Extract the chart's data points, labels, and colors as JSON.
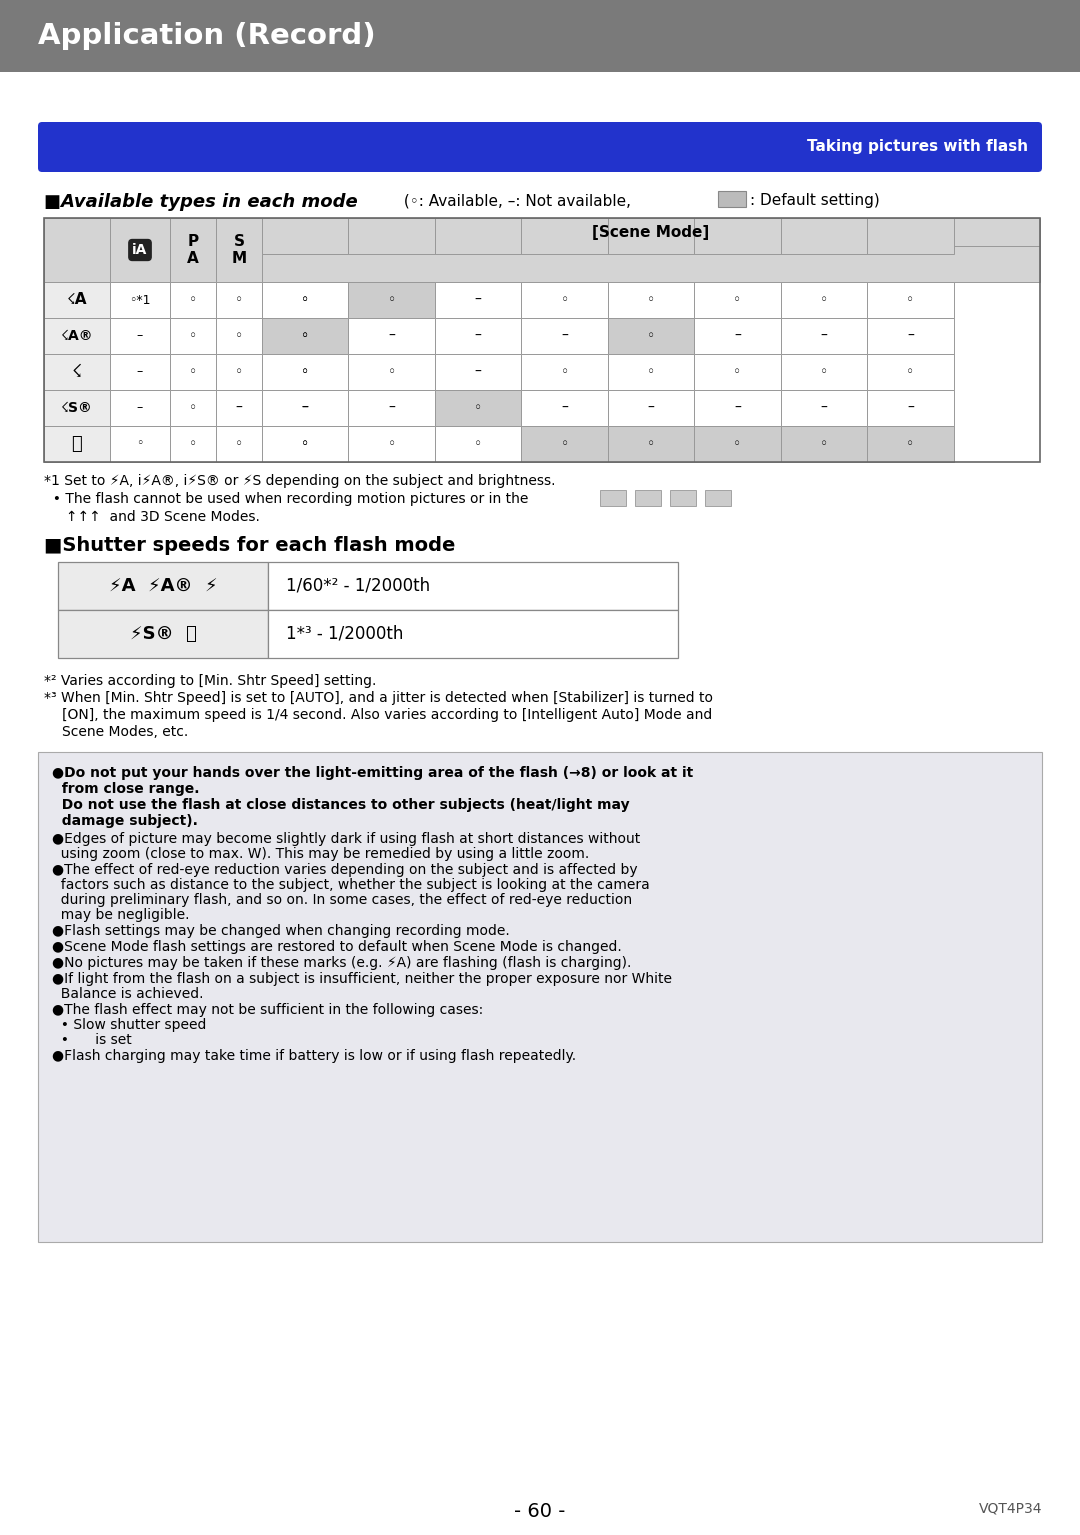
{
  "page_title": "Application (Record)",
  "page_title_bg": "#7a7a7a",
  "page_title_color": "#ffffff",
  "section_banner_text": "Taking pictures with flash",
  "section_banner_bg": "#2233cc",
  "section_banner_color": "#ffffff",
  "shutter_heading": "Shutter speeds for each flash mode",
  "shutter_row1_value": "1/60*² - 1/2000th",
  "shutter_row2_value": "1*³ - 1/2000th",
  "footnote2": "*² Varies according to [Min. Shtr Speed] setting.",
  "footnote3_line1": "*³ When [Min. Shtr Speed] is set to [AUTO], and a jitter is detected when [Stabilizer] is turned to",
  "footnote3_line2": "[ON], the maximum speed is 1/4 second. Also varies according to [Intelligent Auto] Mode and",
  "footnote3_line3": "Scene Modes, etc.",
  "page_number": "- 60 -",
  "model_number": "VQT4P34",
  "bg_color": "#ffffff",
  "text_color": "#000000",
  "table_header_bg": "#d4d4d4",
  "table_default_cell_bg": "#cccccc",
  "table_normal_cell_bg": "#ffffff",
  "border_color": "#999999",
  "warn_box_bg": "#e8e8ee",
  "warn_bold_line1": "●Do not put your hands over the light-emitting area of the flash (→8) or look at it",
  "warn_bold_line2": "  from close range.",
  "warn_bold_line3": "  Do not use the flash at close distances to other subjects (heat/light may",
  "warn_bold_line4": "  damage subject).",
  "warn_bullets": [
    "●Edges of picture may become slightly dark if using flash at short distances without\n  using zoom (close to max. W). This may be remedied by using a little zoom.",
    "●The effect of red-eye reduction varies depending on the subject and is affected by\n  factors such as distance to the subject, whether the subject is looking at the camera\n  during preliminary flash, and so on. In some cases, the effect of red-eye reduction\n  may be negligible.",
    "●Flash settings may be changed when changing recording mode.",
    "●Scene Mode flash settings are restored to default when Scene Mode is changed.",
    "●No pictures may be taken if these marks (e.g. ⚡A) are flashing (flash is charging).",
    "●If light from the flash on a subject is insufficient, neither the proper exposure nor White\n  Balance is achieved.",
    "●The flash effect may not be sufficient in the following cases:\n  • Slow shutter speed\n  •      is set",
    "●Flash charging may take time if battery is low or if using flash repeatedly."
  ]
}
